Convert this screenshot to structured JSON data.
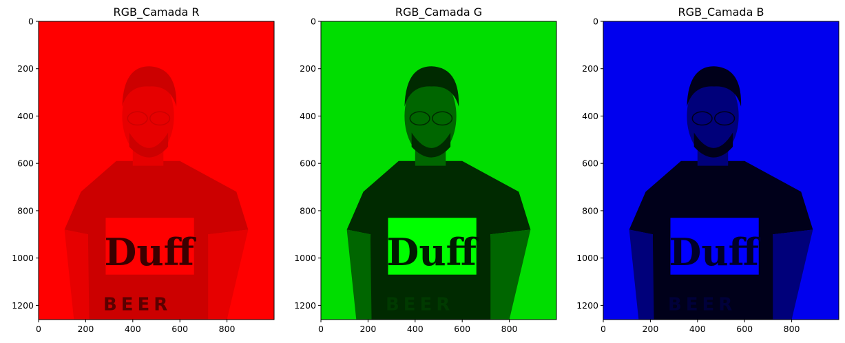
{
  "chart_data": [
    {
      "type": "image",
      "title": "RGB_Camada R",
      "channel": "R",
      "tint": "#ff0000",
      "xlim": [
        0,
        1000
      ],
      "ylim": [
        1260,
        0
      ],
      "xticks": [
        0,
        200,
        400,
        600,
        800
      ],
      "yticks": [
        0,
        200,
        400,
        600,
        800,
        1000,
        1200
      ],
      "shirt_text": [
        "Duff",
        "BEER"
      ]
    },
    {
      "type": "image",
      "title": "RGB_Camada G",
      "channel": "G",
      "tint": "#00dd00",
      "xlim": [
        0,
        1000
      ],
      "ylim": [
        1260,
        0
      ],
      "xticks": [
        0,
        200,
        400,
        600,
        800
      ],
      "yticks": [
        0,
        200,
        400,
        600,
        800,
        1000,
        1200
      ],
      "shirt_text": [
        "Duff",
        "BEER"
      ]
    },
    {
      "type": "image",
      "title": "RGB_Camada B",
      "channel": "B",
      "tint": "#0000ee",
      "xlim": [
        0,
        1000
      ],
      "ylim": [
        1260,
        0
      ],
      "xticks": [
        0,
        200,
        400,
        600,
        800
      ],
      "yticks": [
        0,
        200,
        400,
        600,
        800,
        1000,
        1200
      ],
      "shirt_text": [
        "Duff",
        "BEER"
      ]
    }
  ]
}
